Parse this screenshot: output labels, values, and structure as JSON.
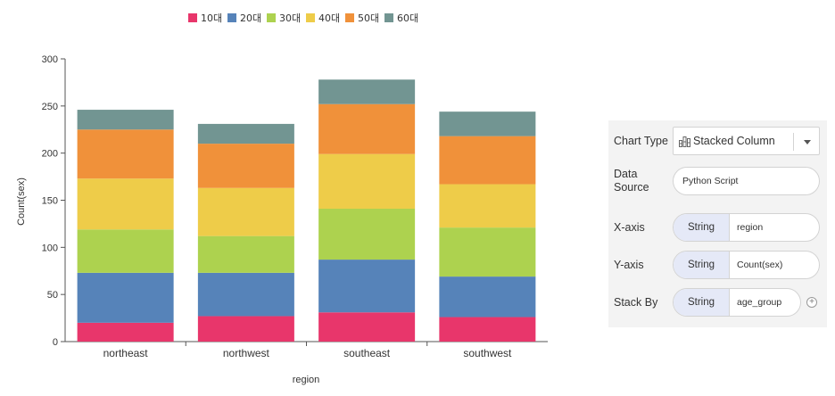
{
  "chart_data": {
    "type": "bar",
    "stacked": true,
    "categories": [
      "northeast",
      "northwest",
      "southeast",
      "southwest"
    ],
    "series": [
      {
        "name": "10대",
        "color": "#e8366b",
        "values": [
          20,
          27,
          31,
          26
        ]
      },
      {
        "name": "20대",
        "color": "#5683b9",
        "values": [
          53,
          46,
          56,
          43
        ]
      },
      {
        "name": "30대",
        "color": "#add24f",
        "values": [
          46,
          39,
          54,
          52
        ]
      },
      {
        "name": "40대",
        "color": "#eecc49",
        "values": [
          54,
          51,
          58,
          46
        ]
      },
      {
        "name": "50대",
        "color": "#f0913a",
        "values": [
          52,
          47,
          53,
          51
        ]
      },
      {
        "name": "60대",
        "color": "#729592",
        "values": [
          21,
          21,
          26,
          26
        ]
      }
    ],
    "xlabel": "region",
    "ylabel": "Count(sex)",
    "ylim": [
      0,
      300
    ],
    "yticks": [
      0,
      50,
      100,
      150,
      200,
      250,
      300
    ],
    "legend_position": "top"
  },
  "panel": {
    "chart_type_label": "Chart Type",
    "chart_type_value": "Stacked Column",
    "data_source_label": "Data Source",
    "data_source_value": "Python Script",
    "xaxis_label": "X-axis",
    "xaxis_type": "String",
    "xaxis_value": "region",
    "yaxis_label": "Y-axis",
    "yaxis_type": "String",
    "yaxis_value": "Count(sex)",
    "stackby_label": "Stack By",
    "stackby_type": "String",
    "stackby_value": "age_group",
    "icons": {
      "chart_type": "stacked-column-icon",
      "dropdown": "chevron-down-icon",
      "add": "plus-circle-icon"
    }
  }
}
